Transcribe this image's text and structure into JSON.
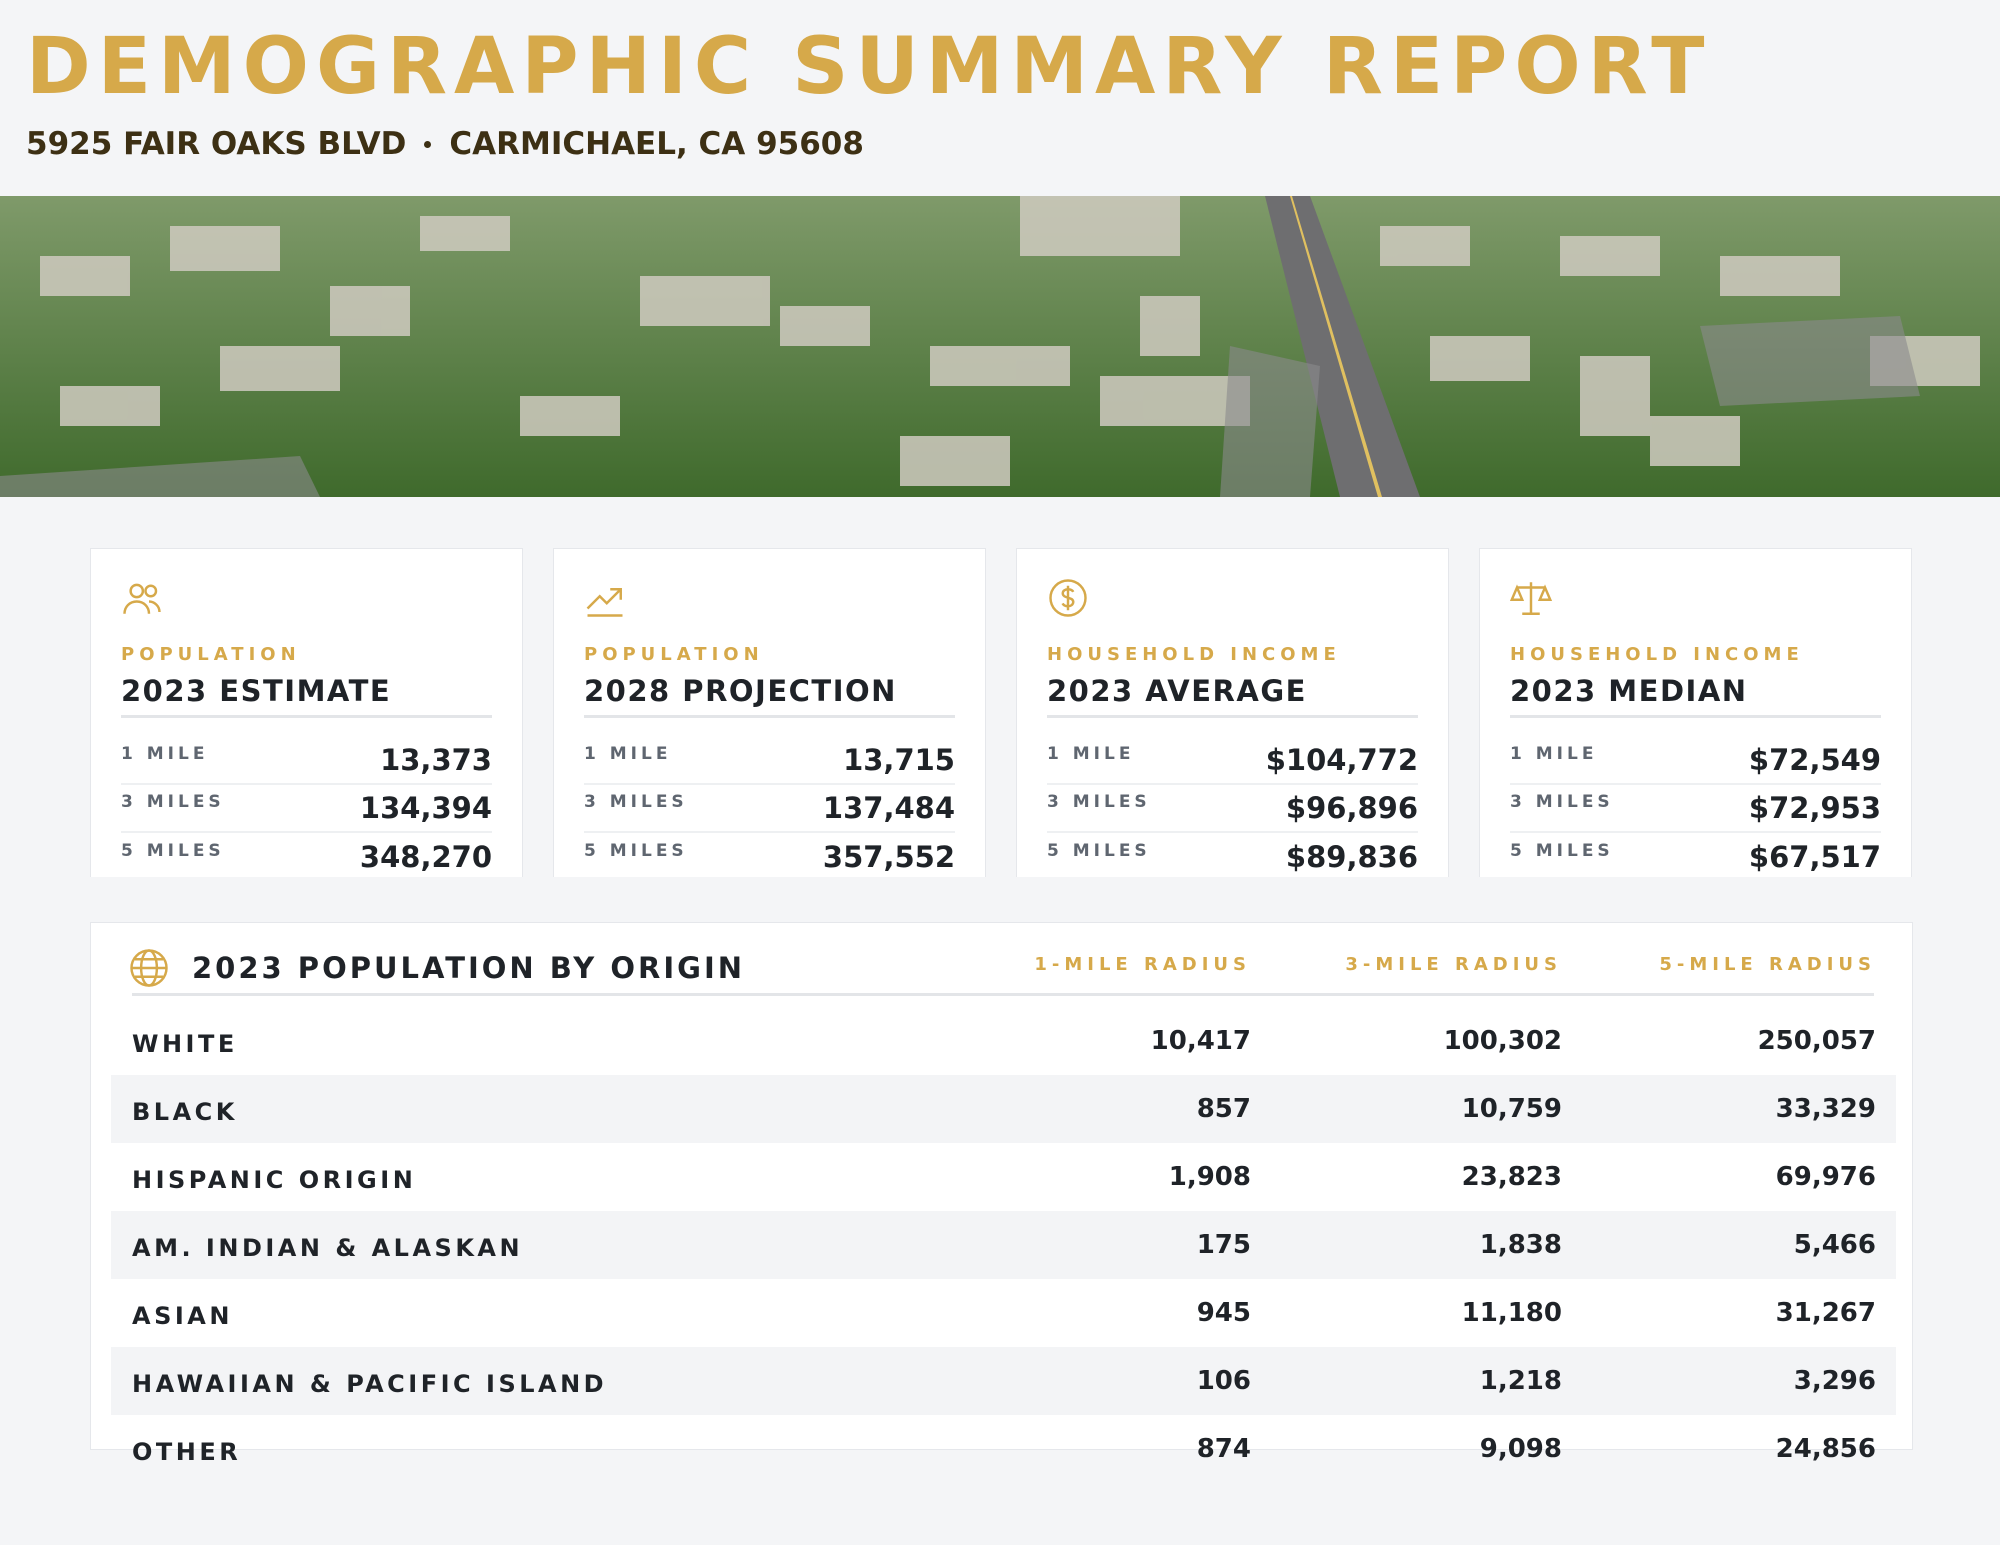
{
  "header": {
    "title": "DEMOGRAPHIC SUMMARY REPORT",
    "address": [
      "5925 FAIR OAKS BLVD",
      "CARMICHAEL, CA 95608"
    ]
  },
  "cards": [
    {
      "label": "POPULATION",
      "title": "2023 ESTIMATE",
      "rows": [
        {
          "radius": "1 MILE",
          "value": "13,373"
        },
        {
          "radius": "3 MILES",
          "value": "134,394"
        },
        {
          "radius": "5 MILES",
          "value": "348,270"
        }
      ]
    },
    {
      "label": "POPULATION",
      "title": "2028 PROJECTION",
      "rows": [
        {
          "radius": "1 MILE",
          "value": "13,715"
        },
        {
          "radius": "3 MILES",
          "value": "137,484"
        },
        {
          "radius": "5 MILES",
          "value": "357,552"
        }
      ]
    },
    {
      "label": "HOUSEHOLD INCOME",
      "title": "2023 AVERAGE",
      "rows": [
        {
          "radius": "1 MILE",
          "value": "$104,772"
        },
        {
          "radius": "3 MILES",
          "value": "$96,896"
        },
        {
          "radius": "5 MILES",
          "value": "$89,836"
        }
      ]
    },
    {
      "label": "HOUSEHOLD INCOME",
      "title": "2023 MEDIAN",
      "rows": [
        {
          "radius": "1 MILE",
          "value": "$72,549"
        },
        {
          "radius": "3 MILES",
          "value": "$72,953"
        },
        {
          "radius": "5 MILES",
          "value": "$67,517"
        }
      ]
    }
  ],
  "table": {
    "title": "2023 POPULATION BY ORIGIN",
    "columns": [
      "1-MILE RADIUS",
      "3-MILE RADIUS",
      "5-MILE RADIUS"
    ],
    "rows": [
      {
        "label": "WHITE",
        "values": [
          "10,417",
          "100,302",
          "250,057"
        ]
      },
      {
        "label": "BLACK",
        "values": [
          "857",
          "10,759",
          "33,329"
        ]
      },
      {
        "label": "HISPANIC ORIGIN",
        "values": [
          "1,908",
          "23,823",
          "69,976"
        ]
      },
      {
        "label": "AM. INDIAN & ALASKAN",
        "values": [
          "175",
          "1,838",
          "5,466"
        ]
      },
      {
        "label": "ASIAN",
        "values": [
          "945",
          "11,180",
          "31,267"
        ]
      },
      {
        "label": "HAWAIIAN & PACIFIC ISLAND",
        "values": [
          "106",
          "1,218",
          "3,296"
        ]
      },
      {
        "label": "OTHER",
        "values": [
          "874",
          "9,098",
          "24,856"
        ]
      }
    ]
  }
}
